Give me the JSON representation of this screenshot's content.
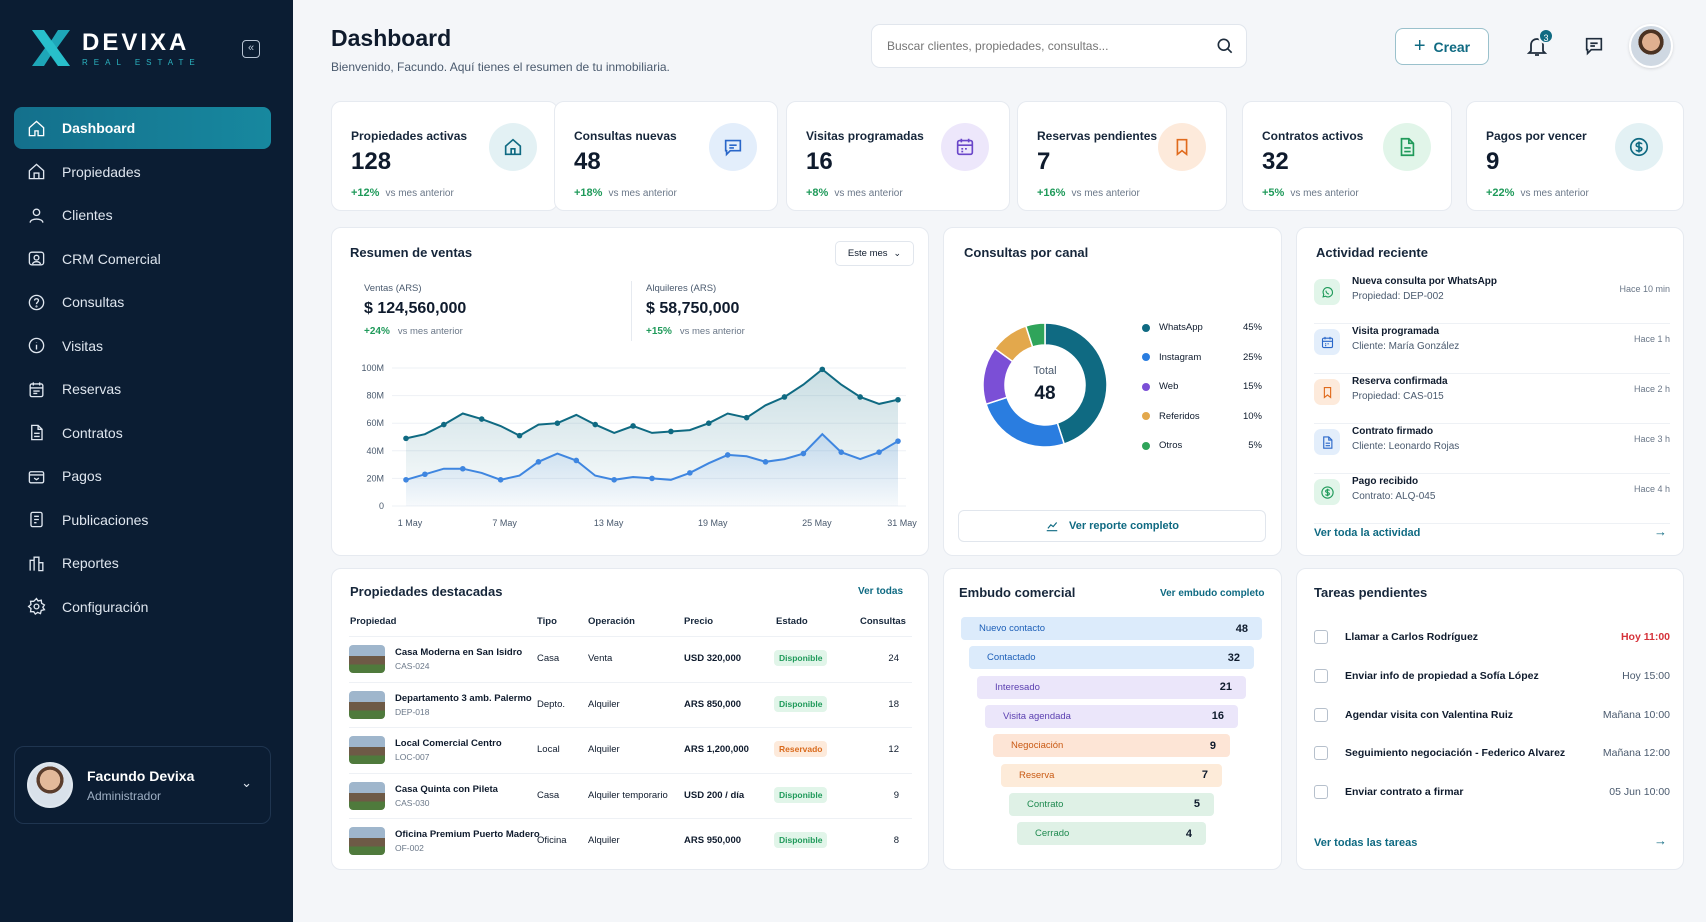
{
  "brand": {
    "name": "DEVIXA",
    "sub": "REAL ESTATE",
    "accent": "#17889f",
    "sidebar_bg": "#0b1d33"
  },
  "nav": [
    {
      "label": "Dashboard",
      "icon": "home-icon"
    },
    {
      "label": "Propiedades",
      "icon": "house-icon"
    },
    {
      "label": "Clientes",
      "icon": "user-icon"
    },
    {
      "label": "CRM Comercial",
      "icon": "crm-icon"
    },
    {
      "label": "Consultas",
      "icon": "question-icon"
    },
    {
      "label": "Visitas",
      "icon": "info-icon"
    },
    {
      "label": "Reservas",
      "icon": "calendar-icon"
    },
    {
      "label": "Contratos",
      "icon": "document-icon"
    },
    {
      "label": "Pagos",
      "icon": "wallet-icon"
    },
    {
      "label": "Publicaciones",
      "icon": "publish-icon"
    },
    {
      "label": "Reportes",
      "icon": "report-icon"
    },
    {
      "label": "Configuración",
      "icon": "gear-icon"
    }
  ],
  "user": {
    "name": "Facundo Devixa",
    "role": "Administrador"
  },
  "header": {
    "title": "Dashboard",
    "subtitle": "Bienvenido, Facundo. Aquí tienes el resumen de tu inmobiliaria.",
    "search_placeholder": "Buscar clientes, propiedades, consultas...",
    "create_label": "Crear",
    "notifications": "3"
  },
  "kpis": [
    {
      "label": "Propiedades activas",
      "value": "128",
      "delta": "+12%",
      "note": "vs mes anterior",
      "icon": "house-icon",
      "color": "#0f6a82",
      "bg": "#e3f1f4"
    },
    {
      "label": "Consultas nuevas",
      "value": "48",
      "delta": "+18%",
      "note": "vs mes anterior",
      "icon": "chat-icon",
      "color": "#2a67c9",
      "bg": "#e3eefb"
    },
    {
      "label": "Visitas programadas",
      "value": "16",
      "delta": "+8%",
      "note": "vs mes anterior",
      "icon": "calendar-icon",
      "color": "#6a46c9",
      "bg": "#ede7fb"
    },
    {
      "label": "Reservas pendientes",
      "value": "7",
      "delta": "+16%",
      "note": "vs mes anterior",
      "icon": "bookmark-icon",
      "color": "#e06a1c",
      "bg": "#fdeadb"
    },
    {
      "label": "Contratos activos",
      "value": "32",
      "delta": "+5%",
      "note": "vs mes anterior",
      "icon": "document-icon",
      "color": "#1f9a5a",
      "bg": "#e1f5e9"
    },
    {
      "label": "Pagos por vencer",
      "value": "9",
      "delta": "+22%",
      "note": "vs mes anterior",
      "icon": "dollar-icon",
      "color": "#0f6a82",
      "bg": "#e3f1f4"
    }
  ],
  "sales": {
    "title": "Resumen de ventas",
    "period": "Este mes",
    "ventas": {
      "label": "Ventas (ARS)",
      "value": "$ 124,560,000",
      "delta": "+24%",
      "note": "vs mes anterior"
    },
    "alquileres": {
      "label": "Alquileres (ARS)",
      "value": "$ 58,750,000",
      "delta": "+15%",
      "note": "vs mes anterior"
    }
  },
  "chart_data": {
    "type": "line",
    "y_ticks": [
      "100M",
      "80M",
      "60M",
      "40M",
      "20M",
      "0"
    ],
    "ylim": [
      0,
      100
    ],
    "x_ticks": [
      "1 May",
      "7 May",
      "13 May",
      "19 May",
      "25 May",
      "31 May"
    ],
    "series": [
      {
        "name": "Ventas (ARS)",
        "color": "#0f6a82",
        "values": [
          49,
          52,
          59,
          67,
          63,
          58,
          51,
          59,
          60,
          66,
          59,
          53,
          58,
          53,
          54,
          55,
          60,
          67,
          64,
          73,
          79,
          88,
          99,
          88,
          79,
          74,
          77
        ]
      },
      {
        "name": "Alquileres (ARS)",
        "color": "#3f86e0",
        "values": [
          19,
          23,
          27,
          27,
          24,
          19,
          22,
          32,
          38,
          33,
          22,
          19,
          21,
          20,
          19,
          24,
          31,
          37,
          36,
          32,
          34,
          38,
          52,
          39,
          34,
          39,
          47
        ]
      }
    ]
  },
  "channels": {
    "title": "Consultas por canal",
    "total_label": "Total",
    "total": "48",
    "report_link": "Ver reporte completo",
    "items": [
      {
        "label": "WhatsApp",
        "pct": "45%",
        "value": 45,
        "color": "#0f6a82"
      },
      {
        "label": "Instagram",
        "pct": "25%",
        "value": 25,
        "color": "#2a7de0"
      },
      {
        "label": "Web",
        "pct": "15%",
        "value": 15,
        "color": "#7b4fd6"
      },
      {
        "label": "Referidos",
        "pct": "10%",
        "value": 10,
        "color": "#e3a84c"
      },
      {
        "label": "Otros",
        "pct": "5%",
        "value": 5,
        "color": "#2fa45a"
      }
    ]
  },
  "activity": {
    "title": "Actividad reciente",
    "link": "Ver toda la actividad",
    "items": [
      {
        "title": "Nueva consulta por WhatsApp",
        "sub": "Propiedad: DEP-002",
        "time": "Hace 10 min",
        "icon": "whatsapp-icon",
        "color": "#1f9a5a",
        "bg": "#e1f5e9"
      },
      {
        "title": "Visita programada",
        "sub": "Cliente: María González",
        "time": "Hace 1 h",
        "icon": "calendar-icon",
        "color": "#2a67c9",
        "bg": "#e3eefb"
      },
      {
        "title": "Reserva confirmada",
        "sub": "Propiedad: CAS-015",
        "time": "Hace 2 h",
        "icon": "bookmark-icon",
        "color": "#e06a1c",
        "bg": "#fdeadb"
      },
      {
        "title": "Contrato firmado",
        "sub": "Cliente: Leonardo Rojas",
        "time": "Hace 3 h",
        "icon": "document-icon",
        "color": "#2a67c9",
        "bg": "#e3eefb"
      },
      {
        "title": "Pago recibido",
        "sub": "Contrato: ALQ-045",
        "time": "Hace 4 h",
        "icon": "dollar-icon",
        "color": "#1f9a5a",
        "bg": "#e1f5e9"
      }
    ]
  },
  "properties": {
    "title": "Propiedades destacadas",
    "link": "Ver todas",
    "headers": [
      "Propiedad",
      "Tipo",
      "Operación",
      "Precio",
      "Estado",
      "Consultas"
    ],
    "rows": [
      {
        "name": "Casa Moderna en San Isidro",
        "code": "CAS-024",
        "type": "Casa",
        "op": "Venta",
        "price": "USD 320,000",
        "status": "Disponible",
        "status_kind": "green",
        "count": "24"
      },
      {
        "name": "Departamento 3 amb. Palermo",
        "code": "DEP-018",
        "type": "Depto.",
        "op": "Alquiler",
        "price": "ARS 850,000",
        "status": "Disponible",
        "status_kind": "green",
        "count": "18"
      },
      {
        "name": "Local Comercial Centro",
        "code": "LOC-007",
        "type": "Local",
        "op": "Alquiler",
        "price": "ARS 1,200,000",
        "status": "Reservado",
        "status_kind": "orange",
        "count": "12"
      },
      {
        "name": "Casa Quinta con Pileta",
        "code": "CAS-030",
        "type": "Casa",
        "op": "Alquiler temporario",
        "price": "USD 200 / día",
        "status": "Disponible",
        "status_kind": "green",
        "count": "9"
      },
      {
        "name": "Oficina Premium Puerto Madero",
        "code": "OF-002",
        "type": "Oficina",
        "op": "Alquiler",
        "price": "ARS 950,000",
        "status": "Disponible",
        "status_kind": "green",
        "count": "8"
      }
    ]
  },
  "funnel": {
    "title": "Embudo comercial",
    "link": "Ver embudo completo",
    "stages": [
      {
        "label": "Nuevo contacto",
        "value": "48",
        "bg": "#dcebfb",
        "color": "#1d5fb8"
      },
      {
        "label": "Contactado",
        "value": "32",
        "bg": "#dcebfb",
        "color": "#1d5fb8"
      },
      {
        "label": "Interesado",
        "value": "21",
        "bg": "#ebe6fa",
        "color": "#5a3fb0"
      },
      {
        "label": "Visita agendada",
        "value": "16",
        "bg": "#ebe6fa",
        "color": "#5a3fb0"
      },
      {
        "label": "Negociación",
        "value": "9",
        "bg": "#fde5d6",
        "color": "#c95a14"
      },
      {
        "label": "Reserva",
        "value": "7",
        "bg": "#fdebd9",
        "color": "#c95a14"
      },
      {
        "label": "Contrato",
        "value": "5",
        "bg": "#dff1e6",
        "color": "#1f8a50"
      },
      {
        "label": "Cerrado",
        "value": "4",
        "bg": "#dff1e6",
        "color": "#1f8a50"
      }
    ]
  },
  "tasks": {
    "title": "Tareas pendientes",
    "link": "Ver todas las tareas",
    "items": [
      {
        "label": "Llamar a Carlos Rodríguez",
        "time": "Hoy 11:00",
        "urgent": true
      },
      {
        "label": "Enviar info de propiedad a Sofía López",
        "time": "Hoy 15:00",
        "urgent": false
      },
      {
        "label": "Agendar visita con Valentina Ruiz",
        "time": "Mañana 10:00",
        "urgent": false
      },
      {
        "label": "Seguimiento negociación - Federico Alvarez",
        "time": "Mañana 12:00",
        "urgent": false
      },
      {
        "label": "Enviar contrato a firmar",
        "time": "05 Jun 10:00",
        "urgent": false
      }
    ]
  }
}
